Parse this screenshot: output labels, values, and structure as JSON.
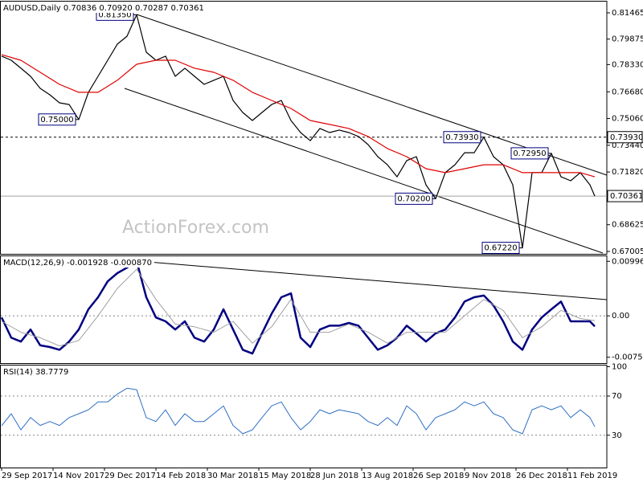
{
  "chart_data": [
    {
      "type": "line",
      "title": "AUDUSD,Daily  0.70836 0.70920 0.70287 0.70361",
      "watermark": "ActionForex.com",
      "xlim": [
        0,
        376.5
      ],
      "ylim": [
        0.66859,
        0.82195
      ],
      "yticks": [
        0.81465,
        0.79875,
        {
          "value": 0.7833,
          "label": "0.78330"
        },
        {
          "value": 0.7668,
          "label": "0.76680"
        },
        {
          "value": 0.7506,
          "label": "0.75060"
        },
        {
          "value": 0.7344,
          "label": "0.73440"
        },
        {
          "value": 0.7182,
          "label": "0.71820"
        },
        0.68625,
        0.67005
      ],
      "hlines": [
        {
          "value": 0.7393,
          "label": "0.73930",
          "style": "dashed",
          "color": "#000000"
        },
        {
          "value": 0.70361,
          "style": "solid",
          "color": "#a0a0a0"
        }
      ],
      "series": [
        {
          "color": "#000000",
          "width": 1.2,
          "x": [
            0,
            6,
            12,
            18,
            24,
            30,
            36,
            42,
            48,
            54,
            60,
            66,
            72,
            78,
            84,
            90,
            96,
            102,
            108,
            114,
            120,
            126,
            132,
            138,
            144,
            150,
            156,
            162,
            168,
            174,
            180,
            186,
            192,
            198,
            204,
            210,
            216,
            222,
            228,
            234,
            240,
            246,
            252,
            258,
            264,
            270,
            276,
            282,
            288,
            294,
            300,
            306,
            312,
            318,
            324,
            330,
            336,
            342,
            348,
            354,
            360,
            366,
            369
          ],
          "values": [
            0.7884,
            0.7859,
            0.7811,
            0.7762,
            0.7689,
            0.765,
            0.7601,
            0.7591,
            0.75,
            0.7665,
            0.7762,
            0.7859,
            0.7957,
            0.8005,
            0.8135,
            0.7908,
            0.7859,
            0.7884,
            0.7762,
            0.7811,
            0.7762,
            0.7713,
            0.7738,
            0.7762,
            0.7616,
            0.7543,
            0.7494,
            0.7543,
            0.7591,
            0.7616,
            0.7494,
            0.7421,
            0.7372,
            0.7446,
            0.7421,
            0.7436,
            0.7421,
            0.7397,
            0.7348,
            0.7275,
            0.7226,
            0.7153,
            0.7251,
            0.7275,
            0.7104,
            0.702,
            0.7178,
            0.7226,
            0.7299,
            0.7299,
            0.7393,
            0.7275,
            0.7226,
            0.7104,
            0.6722,
            0.7178,
            0.7178,
            0.7295,
            0.7153,
            0.7129,
            0.7178,
            0.7104,
            0.70361
          ]
        },
        {
          "color": "#e00000",
          "width": 1.2,
          "x": [
            0,
            12,
            24,
            36,
            48,
            60,
            72,
            84,
            96,
            108,
            120,
            132,
            144,
            156,
            168,
            180,
            192,
            204,
            216,
            228,
            240,
            252,
            264,
            276,
            288,
            300,
            312,
            324,
            336,
            348,
            360,
            369
          ],
          "values": [
            0.7893,
            0.7859,
            0.7786,
            0.7713,
            0.7665,
            0.7665,
            0.7738,
            0.7835,
            0.7859,
            0.7859,
            0.7811,
            0.7786,
            0.7738,
            0.7665,
            0.7616,
            0.7567,
            0.7494,
            0.747,
            0.7446,
            0.7397,
            0.7324,
            0.7275,
            0.7202,
            0.7178,
            0.7202,
            0.7226,
            0.7226,
            0.7178,
            0.7178,
            0.7178,
            0.7178,
            0.7153
          ]
        }
      ],
      "annotations": [
        {
          "x": 84,
          "value": 0.8135,
          "label": "0.81350"
        },
        {
          "x": 48,
          "value": 0.75,
          "label": "0.75000"
        },
        {
          "x": 300,
          "value": 0.7393,
          "label": "0.73930"
        },
        {
          "x": 342,
          "value": 0.7295,
          "label": "0.72950"
        },
        {
          "x": 270,
          "value": 0.702,
          "label": "0.70200"
        },
        {
          "x": 324,
          "value": 0.6722,
          "label": "0.67220"
        }
      ]
    },
    {
      "type": "line",
      "title": "MACD(12,26,9) -0.001928 -0.000870",
      "xlim": [
        0,
        376.5
      ],
      "ylim": [
        -0.00864,
        0.01103
      ],
      "yticks": [
        0.009964,
        {
          "value": 0,
          "label": "0.00"
        },
        -0.00756
      ],
      "levels": [
        0
      ],
      "series": [
        {
          "color": "#000080",
          "width": 2.5,
          "x": [
            0,
            6,
            12,
            18,
            24,
            30,
            36,
            42,
            48,
            54,
            60,
            66,
            72,
            78,
            84,
            90,
            96,
            102,
            108,
            114,
            120,
            126,
            132,
            138,
            144,
            150,
            156,
            162,
            168,
            174,
            180,
            186,
            192,
            198,
            204,
            210,
            216,
            222,
            228,
            234,
            240,
            246,
            252,
            258,
            264,
            270,
            276,
            282,
            288,
            294,
            300,
            306,
            312,
            318,
            324,
            330,
            336,
            342,
            348,
            354,
            360,
            366,
            369
          ],
          "values": [
            -0.0003,
            -0.004,
            -0.0047,
            -0.0025,
            -0.0054,
            -0.0057,
            -0.0062,
            -0.0047,
            -0.0025,
            0.0012,
            0.0034,
            0.0063,
            0.0078,
            0.0088,
            0.01,
            0.0034,
            -0.0003,
            -0.001,
            -0.0025,
            -0.001,
            -0.004,
            -0.0047,
            -0.0025,
            0.0012,
            -0.0025,
            -0.0062,
            -0.0069,
            -0.0032,
            0.0004,
            0.0034,
            0.0041,
            -0.004,
            -0.0057,
            -0.0025,
            -0.0018,
            -0.0018,
            -0.0013,
            -0.0018,
            -0.004,
            -0.0062,
            -0.0054,
            -0.004,
            -0.0018,
            -0.0032,
            -0.0047,
            -0.0032,
            -0.0025,
            -0.0003,
            0.0026,
            0.0034,
            0.0037,
            0.0019,
            -0.001,
            -0.0047,
            -0.0062,
            -0.0025,
            -0.0003,
            0.0012,
            0.0026,
            -0.001,
            -0.001,
            -0.001,
            -0.001928
          ]
        },
        {
          "color": "#a0a0a0",
          "width": 1,
          "x": [
            0,
            12,
            24,
            36,
            48,
            60,
            72,
            84,
            96,
            108,
            120,
            132,
            144,
            156,
            168,
            180,
            192,
            204,
            216,
            228,
            240,
            252,
            264,
            276,
            288,
            300,
            312,
            324,
            336,
            348,
            360,
            369
          ],
          "values": [
            -0.001,
            -0.003,
            -0.004,
            -0.0055,
            -0.0045,
            0,
            0.005,
            0.0085,
            0.003,
            -0.0015,
            -0.002,
            -0.003,
            -0.001,
            -0.005,
            -0.002,
            0.003,
            -0.003,
            -0.003,
            -0.0015,
            -0.003,
            -0.005,
            -0.003,
            -0.003,
            -0.003,
            0,
            0.003,
            0.001,
            -0.004,
            -0.002,
            0.001,
            -0.0005,
            -0.00087
          ]
        }
      ]
    },
    {
      "type": "line",
      "title": "RSI(14) 38.7779",
      "xlim": [
        0,
        376.5
      ],
      "ylim": [
        -3,
        102
      ],
      "yticks": [
        100,
        70,
        30
      ],
      "levels": [
        70,
        30
      ],
      "xticks": [
        {
          "value": 0,
          "label": "29 Sep 2017"
        },
        {
          "value": 32,
          "label": "14 Nov 2017"
        },
        {
          "value": 64,
          "label": "29 Dec 2017"
        },
        {
          "value": 96,
          "label": "14 Feb 2018"
        },
        {
          "value": 128,
          "label": "30 Mar 2018"
        },
        {
          "value": 160,
          "label": "15 May 2018"
        },
        {
          "value": 192,
          "label": "28 Jun 2018"
        },
        {
          "value": 224,
          "label": "13 Aug 2018"
        },
        {
          "value": 256,
          "label": "26 Sep 2018"
        },
        {
          "value": 288,
          "label": "9 Nov 2018"
        },
        {
          "value": 320,
          "label": "26 Dec 2018"
        },
        {
          "value": 352,
          "label": "11 Feb 2019"
        }
      ],
      "series": [
        {
          "color": "#2f6fc4",
          "width": 1,
          "x": [
            0,
            6,
            12,
            18,
            24,
            30,
            36,
            42,
            48,
            54,
            60,
            66,
            72,
            78,
            84,
            90,
            96,
            102,
            108,
            114,
            120,
            126,
            132,
            138,
            144,
            150,
            156,
            162,
            168,
            174,
            180,
            186,
            192,
            198,
            204,
            210,
            216,
            222,
            228,
            234,
            240,
            246,
            252,
            258,
            264,
            270,
            276,
            282,
            288,
            294,
            300,
            306,
            312,
            318,
            324,
            330,
            336,
            342,
            348,
            354,
            360,
            366,
            369
          ],
          "values": [
            39.7,
            52,
            35.5,
            48,
            40,
            44,
            40,
            48,
            52,
            56,
            64,
            64,
            72,
            78,
            76.5,
            48,
            44,
            56,
            40,
            52,
            44,
            44,
            52,
            60,
            40,
            31.5,
            35.5,
            48,
            60,
            64,
            48,
            35.5,
            44,
            56,
            52,
            56,
            54,
            52,
            44,
            40,
            48,
            40,
            60,
            52,
            35.5,
            48,
            52,
            56,
            64,
            60,
            64,
            52,
            48,
            35.5,
            31.5,
            56,
            60,
            56,
            60,
            48,
            56,
            48,
            38.7779
          ]
        }
      ]
    }
  ]
}
